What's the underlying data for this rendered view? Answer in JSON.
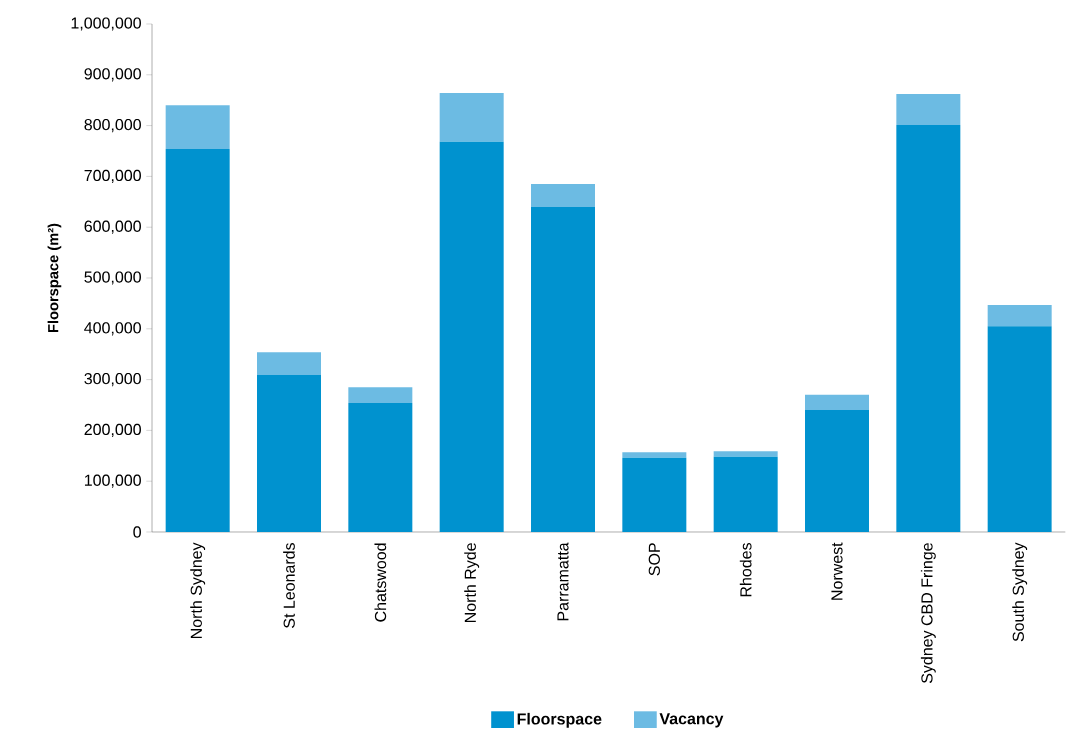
{
  "chart_data": {
    "type": "bar",
    "stacked": true,
    "ylabel": "Floorspace (m²)",
    "categories": [
      "North Sydney",
      "St Leonards",
      "Chatswood",
      "North Ryde",
      "Parramatta",
      "SOP",
      "Rhodes",
      "Norwest",
      "Sydney CBD Fringe",
      "South Sydney"
    ],
    "series": [
      {
        "name": "Floorspace",
        "color": "#0092cf",
        "values": [
          754000,
          309000,
          254000,
          768000,
          640000,
          146000,
          148000,
          240000,
          801000,
          405000
        ]
      },
      {
        "name": "Vacancy",
        "color": "#6cbbe3",
        "values": [
          86000,
          45000,
          31000,
          96000,
          45000,
          11000,
          11000,
          30000,
          61000,
          42000
        ]
      }
    ],
    "ylim": [
      0,
      1000000
    ],
    "yticks": [
      0,
      {
        "value": 100000,
        "label": "100,000"
      },
      {
        "value": 200000,
        "label": "200,000"
      },
      {
        "value": 300000,
        "label": "300,000"
      },
      {
        "value": 400000,
        "label": "400,000"
      },
      {
        "value": 500000,
        "label": "500,000"
      },
      {
        "value": 600000,
        "label": "600,000"
      },
      {
        "value": 700000,
        "label": "700,000"
      },
      {
        "value": 800000,
        "label": "800,000"
      },
      {
        "value": 900000,
        "label": "900,000"
      },
      {
        "value": 1000000,
        "label": "1,000,000"
      }
    ],
    "grid": false,
    "legend": "bottom"
  }
}
